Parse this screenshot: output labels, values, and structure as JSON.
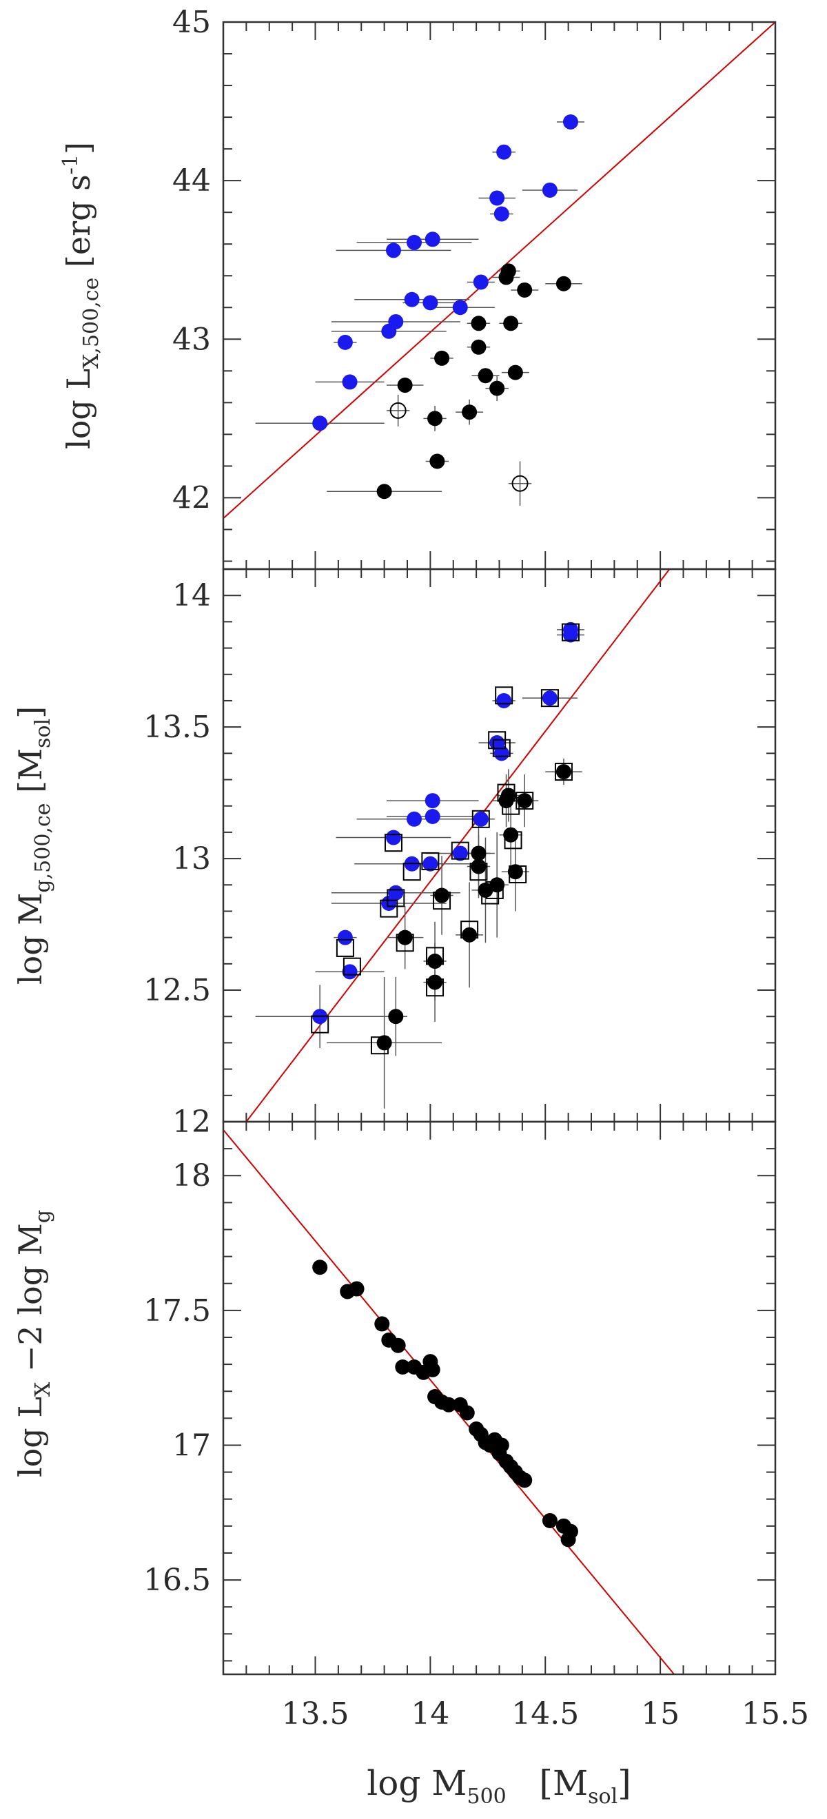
{
  "chart_data": [
    {
      "type": "scatter",
      "panel": "top",
      "ylabel": {
        "main": "log L",
        "sub": "X,500,ce",
        "unit_open": " [erg s",
        "sup": "-1",
        "unit_close": "]"
      },
      "xlim": [
        13.1,
        15.5
      ],
      "ylim": [
        41.55,
        45.0
      ],
      "yticks": [
        "42",
        "43",
        "44",
        "45"
      ],
      "ytick_values": [
        42,
        43,
        44,
        45
      ],
      "fit_line": {
        "color": "#d40000",
        "x": [
          13.1,
          15.5
        ],
        "y": [
          41.87,
          45.0
        ]
      },
      "series": [
        {
          "marker": "filled-circle",
          "color": "#1a1aee",
          "points": [
            {
              "x": 13.52,
              "y": 42.47,
              "xerr": 0.28
            },
            {
              "x": 13.65,
              "y": 42.73,
              "xerr": 0.15
            },
            {
              "x": 13.63,
              "y": 42.98,
              "xerr": 0.05
            },
            {
              "x": 13.82,
              "y": 43.05,
              "xerr": 0.25
            },
            {
              "x": 13.85,
              "y": 43.11,
              "xerr": 0.28
            },
            {
              "x": 13.92,
              "y": 43.25,
              "xerr": 0.25
            },
            {
              "x": 14.0,
              "y": 43.23,
              "xerr": 0.12
            },
            {
              "x": 14.13,
              "y": 43.2,
              "xerr": 0.15
            },
            {
              "x": 14.22,
              "y": 43.36,
              "xerr": 0.06
            },
            {
              "x": 13.84,
              "y": 43.56,
              "xerr": 0.25
            },
            {
              "x": 13.93,
              "y": 43.61,
              "xerr": 0.25
            },
            {
              "x": 14.01,
              "y": 43.63,
              "xerr": 0.2
            },
            {
              "x": 14.29,
              "y": 43.89,
              "xerr": 0.08
            },
            {
              "x": 14.31,
              "y": 43.79,
              "xerr": 0.05
            },
            {
              "x": 14.52,
              "y": 43.94,
              "xerr": 0.12
            },
            {
              "x": 14.32,
              "y": 44.18,
              "xerr": 0.05
            },
            {
              "x": 14.61,
              "y": 44.37,
              "xerr": 0.06
            }
          ]
        },
        {
          "marker": "filled-circle",
          "color": "#000000",
          "points": [
            {
              "x": 13.8,
              "y": 42.04,
              "xerr": 0.25
            },
            {
              "x": 14.03,
              "y": 42.23,
              "xerr": 0.05
            },
            {
              "x": 14.02,
              "y": 42.5,
              "xerr": 0.05,
              "yerr": 0.08
            },
            {
              "x": 14.17,
              "y": 42.54,
              "xerr": 0.06,
              "yerr": 0.08
            },
            {
              "x": 13.89,
              "y": 42.71,
              "xerr": 0.08
            },
            {
              "x": 14.29,
              "y": 42.69,
              "xerr": 0.05,
              "yerr": 0.08
            },
            {
              "x": 14.24,
              "y": 42.77,
              "xerr": 0.06
            },
            {
              "x": 14.37,
              "y": 42.79,
              "xerr": 0.06
            },
            {
              "x": 14.05,
              "y": 42.88,
              "xerr": 0.05
            },
            {
              "x": 14.21,
              "y": 42.95,
              "xerr": 0.05
            },
            {
              "x": 14.21,
              "y": 43.1,
              "xerr": 0.05
            },
            {
              "x": 14.35,
              "y": 43.1,
              "xerr": 0.05
            },
            {
              "x": 14.33,
              "y": 43.39,
              "xerr": 0.06
            },
            {
              "x": 14.34,
              "y": 43.43,
              "xerr": 0.05
            },
            {
              "x": 14.41,
              "y": 43.31,
              "xerr": 0.06
            },
            {
              "x": 14.58,
              "y": 43.35,
              "xerr": 0.08
            }
          ]
        },
        {
          "marker": "open-circle",
          "color": "#000000",
          "points": [
            {
              "x": 13.86,
              "y": 42.55,
              "xerr": 0.05,
              "yerr": 0.1
            },
            {
              "x": 14.39,
              "y": 42.09,
              "xerr": 0.05,
              "yerr": 0.14
            }
          ]
        }
      ]
    },
    {
      "type": "scatter",
      "panel": "middle",
      "ylabel": {
        "main": "log M",
        "sub": "g,500,ce",
        "unit_open": " [M",
        "unit_sub": "sol",
        "unit_close": "]"
      },
      "xlim": [
        13.1,
        15.5
      ],
      "ylim": [
        12.0,
        14.1
      ],
      "yticks": [
        "12",
        "12.5",
        "13",
        "13.5",
        "14"
      ],
      "ytick_values": [
        12,
        12.5,
        13,
        13.5,
        14
      ],
      "fit_line": {
        "color": "#d40000",
        "x": [
          13.2,
          15.04
        ],
        "y": [
          12.0,
          14.1
        ]
      },
      "series": [
        {
          "marker": "filled-circle",
          "color": "#1a1aee",
          "points": [
            {
              "x": 13.52,
              "y": 12.4,
              "xerr": 0.28,
              "yerr": 0.12
            },
            {
              "x": 13.65,
              "y": 12.57,
              "xerr": 0.15
            },
            {
              "x": 13.63,
              "y": 12.7,
              "xerr": 0.05
            },
            {
              "x": 13.82,
              "y": 12.83,
              "xerr": 0.25
            },
            {
              "x": 13.85,
              "y": 12.87,
              "xerr": 0.28
            },
            {
              "x": 13.92,
              "y": 12.98,
              "xerr": 0.25
            },
            {
              "x": 14.0,
              "y": 12.98,
              "xerr": 0.12
            },
            {
              "x": 14.13,
              "y": 13.02,
              "xerr": 0.15
            },
            {
              "x": 14.22,
              "y": 13.15,
              "xerr": 0.06
            },
            {
              "x": 13.84,
              "y": 13.08,
              "xerr": 0.25
            },
            {
              "x": 13.93,
              "y": 13.15,
              "xerr": 0.25
            },
            {
              "x": 14.01,
              "y": 13.16,
              "xerr": 0.2
            },
            {
              "x": 14.01,
              "y": 13.22,
              "xerr": 0.2
            },
            {
              "x": 14.29,
              "y": 13.44,
              "xerr": 0.08
            },
            {
              "x": 14.31,
              "y": 13.4,
              "xerr": 0.05
            },
            {
              "x": 14.52,
              "y": 13.61,
              "xerr": 0.12
            },
            {
              "x": 14.32,
              "y": 13.6,
              "xerr": 0.05
            },
            {
              "x": 14.61,
              "y": 13.85,
              "xerr": 0.06
            },
            {
              "x": 14.61,
              "y": 13.87,
              "xerr": 0.06
            }
          ]
        },
        {
          "marker": "filled-circle",
          "color": "#000000",
          "points": [
            {
              "x": 13.8,
              "y": 12.3,
              "xerr": 0.25,
              "yerr": 0.25
            },
            {
              "x": 13.85,
              "y": 12.4,
              "xerr": 0.05,
              "yerr": 0.15
            },
            {
              "x": 14.02,
              "y": 12.53,
              "xerr": 0.05,
              "yerr": 0.15
            },
            {
              "x": 14.02,
              "y": 12.61,
              "xerr": 0.05,
              "yerr": 0.15
            },
            {
              "x": 13.89,
              "y": 12.7,
              "xerr": 0.08,
              "yerr": 0.12
            },
            {
              "x": 14.17,
              "y": 12.71,
              "xerr": 0.06,
              "yerr": 0.2
            },
            {
              "x": 14.05,
              "y": 12.86,
              "xerr": 0.05,
              "yerr": 0.15
            },
            {
              "x": 14.24,
              "y": 12.88,
              "xerr": 0.06,
              "yerr": 0.2
            },
            {
              "x": 14.29,
              "y": 12.9,
              "xerr": 0.05,
              "yerr": 0.2
            },
            {
              "x": 14.37,
              "y": 12.95,
              "xerr": 0.06,
              "yerr": 0.15
            },
            {
              "x": 14.21,
              "y": 12.97,
              "xerr": 0.05,
              "yerr": 0.12
            },
            {
              "x": 14.21,
              "y": 13.02,
              "xerr": 0.05,
              "yerr": 0.12
            },
            {
              "x": 14.35,
              "y": 13.09,
              "xerr": 0.05,
              "yerr": 0.12
            },
            {
              "x": 14.41,
              "y": 13.22,
              "xerr": 0.06,
              "yerr": 0.1
            },
            {
              "x": 14.33,
              "y": 13.22,
              "xerr": 0.06,
              "yerr": 0.1
            },
            {
              "x": 14.34,
              "y": 13.24,
              "xerr": 0.05,
              "yerr": 0.1
            },
            {
              "x": 14.58,
              "y": 13.33,
              "xerr": 0.08,
              "yerr": 0.05
            }
          ]
        },
        {
          "marker": "open-square",
          "color": "#000000",
          "points": [
            {
              "x": 13.52,
              "y": 12.37
            },
            {
              "x": 13.63,
              "y": 12.66
            },
            {
              "x": 13.66,
              "y": 12.59
            },
            {
              "x": 13.78,
              "y": 12.29
            },
            {
              "x": 13.82,
              "y": 12.81
            },
            {
              "x": 13.85,
              "y": 12.85
            },
            {
              "x": 13.89,
              "y": 12.68
            },
            {
              "x": 13.92,
              "y": 12.95
            },
            {
              "x": 13.84,
              "y": 13.06
            },
            {
              "x": 14.0,
              "y": 12.99
            },
            {
              "x": 14.02,
              "y": 12.51
            },
            {
              "x": 14.02,
              "y": 12.63
            },
            {
              "x": 14.05,
              "y": 12.84
            },
            {
              "x": 14.13,
              "y": 13.03
            },
            {
              "x": 14.17,
              "y": 12.73
            },
            {
              "x": 14.21,
              "y": 12.95
            },
            {
              "x": 14.22,
              "y": 13.15
            },
            {
              "x": 14.26,
              "y": 12.86
            },
            {
              "x": 14.28,
              "y": 12.88
            },
            {
              "x": 14.29,
              "y": 13.45
            },
            {
              "x": 14.31,
              "y": 13.42
            },
            {
              "x": 14.32,
              "y": 13.62
            },
            {
              "x": 14.33,
              "y": 13.25
            },
            {
              "x": 14.35,
              "y": 13.2
            },
            {
              "x": 14.36,
              "y": 13.07
            },
            {
              "x": 14.38,
              "y": 12.94
            },
            {
              "x": 14.41,
              "y": 13.22
            },
            {
              "x": 14.52,
              "y": 13.61
            },
            {
              "x": 14.58,
              "y": 13.33
            },
            {
              "x": 14.61,
              "y": 13.86
            }
          ]
        }
      ]
    },
    {
      "type": "scatter",
      "panel": "bottom",
      "ylabel": {
        "main": "log L",
        "sub": "X",
        "mid": " −2 log M",
        "sub2": "g"
      },
      "xlabel": {
        "main": "log M",
        "sub": "500",
        "unit_open": "   [M",
        "unit_sub": "sol",
        "unit_close": "]"
      },
      "xlim": [
        13.1,
        15.5
      ],
      "ylim": [
        16.15,
        18.2
      ],
      "xticks": [
        "13.5",
        "14",
        "14.5",
        "15",
        "15.5"
      ],
      "xtick_values": [
        13.5,
        14.0,
        14.5,
        15.0,
        15.5
      ],
      "yticks": [
        "16.5",
        "17",
        "17.5",
        "18"
      ],
      "ytick_values": [
        16.5,
        17.0,
        17.5,
        18.0
      ],
      "fit_line": {
        "color": "#d40000",
        "x": [
          13.1,
          15.06
        ],
        "y": [
          18.17,
          16.15
        ]
      },
      "series": [
        {
          "marker": "filled-circle",
          "color": "#000000",
          "points": [
            {
              "x": 13.52,
              "y": 17.66
            },
            {
              "x": 13.64,
              "y": 17.57
            },
            {
              "x": 13.68,
              "y": 17.58
            },
            {
              "x": 13.79,
              "y": 17.45
            },
            {
              "x": 13.82,
              "y": 17.39
            },
            {
              "x": 13.86,
              "y": 17.37
            },
            {
              "x": 13.88,
              "y": 17.29
            },
            {
              "x": 13.93,
              "y": 17.29
            },
            {
              "x": 13.97,
              "y": 17.27
            },
            {
              "x": 14.0,
              "y": 17.31
            },
            {
              "x": 14.01,
              "y": 17.28
            },
            {
              "x": 14.02,
              "y": 17.18
            },
            {
              "x": 14.05,
              "y": 17.16
            },
            {
              "x": 14.08,
              "y": 17.15
            },
            {
              "x": 14.13,
              "y": 17.15
            },
            {
              "x": 14.16,
              "y": 17.12
            },
            {
              "x": 14.2,
              "y": 17.06
            },
            {
              "x": 14.22,
              "y": 17.04
            },
            {
              "x": 14.24,
              "y": 17.01
            },
            {
              "x": 14.26,
              "y": 17.0
            },
            {
              "x": 14.28,
              "y": 17.02
            },
            {
              "x": 14.3,
              "y": 16.97
            },
            {
              "x": 14.31,
              "y": 17.0
            },
            {
              "x": 14.33,
              "y": 16.94
            },
            {
              "x": 14.35,
              "y": 16.92
            },
            {
              "x": 14.37,
              "y": 16.9
            },
            {
              "x": 14.39,
              "y": 16.88
            },
            {
              "x": 14.41,
              "y": 16.87
            },
            {
              "x": 14.52,
              "y": 16.72
            },
            {
              "x": 14.58,
              "y": 16.7
            },
            {
              "x": 14.6,
              "y": 16.65
            },
            {
              "x": 14.61,
              "y": 16.68
            }
          ]
        }
      ]
    }
  ]
}
